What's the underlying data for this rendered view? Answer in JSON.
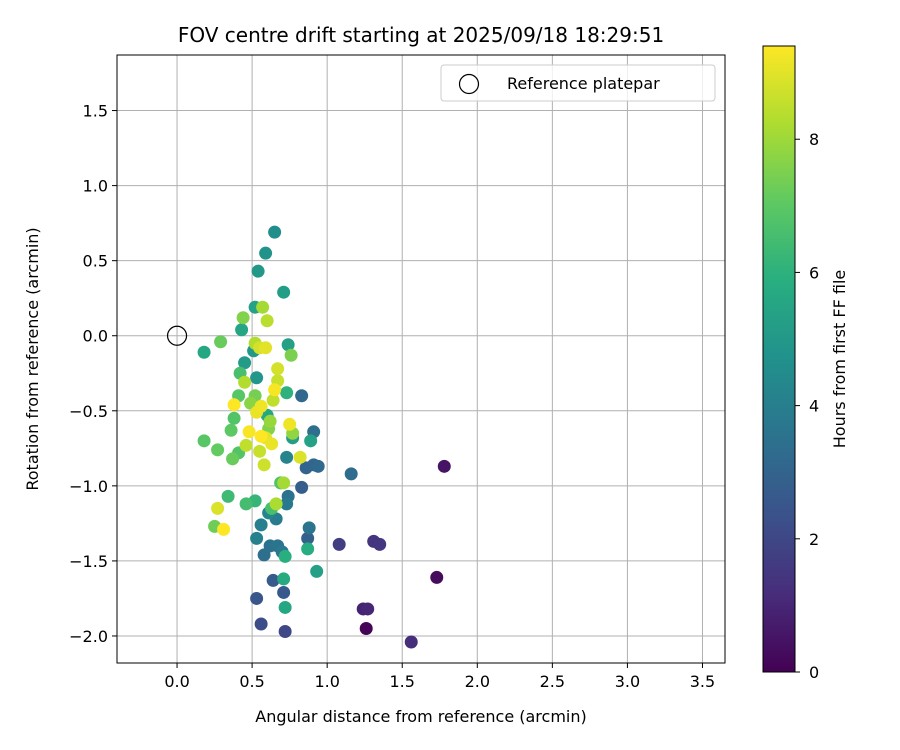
{
  "chart_data": {
    "type": "scatter",
    "title": "FOV centre drift starting at 2025/09/18 18:29:51",
    "xlabel": "Angular distance from reference (arcmin)",
    "ylabel": "Rotation from reference (arcmin)",
    "xlim": [
      -0.4,
      3.65
    ],
    "ylim": [
      -2.18,
      1.87
    ],
    "xticks": [
      "0.0",
      "0.5",
      "1.0",
      "1.5",
      "2.0",
      "2.5",
      "3.0",
      "3.5"
    ],
    "yticks": [
      "1.5",
      "1.0",
      "0.5",
      "0.0",
      "−0.5",
      "−1.0",
      "−1.5",
      "−2.0"
    ],
    "grid": true,
    "legend": {
      "placement": "top-right",
      "label": "Reference platepar"
    },
    "reference_point": {
      "x": 0.0,
      "y": 0.0
    },
    "colorbar": {
      "label": "Hours from first FF file",
      "range": [
        0,
        9.4
      ],
      "ticks": [
        "0",
        "2",
        "4",
        "6",
        "8"
      ],
      "colormap": "viridis"
    },
    "points": [
      {
        "x": 1.26,
        "y": -1.95,
        "hours": 0.1
      },
      {
        "x": 1.73,
        "y": -1.61,
        "hours": 0.3
      },
      {
        "x": 1.78,
        "y": -0.87,
        "hours": 0.5
      },
      {
        "x": 1.24,
        "y": -1.82,
        "hours": 0.9
      },
      {
        "x": 1.27,
        "y": -1.82,
        "hours": 1.0
      },
      {
        "x": 1.56,
        "y": -2.04,
        "hours": 1.2
      },
      {
        "x": 1.31,
        "y": -1.37,
        "hours": 1.4
      },
      {
        "x": 1.35,
        "y": -1.39,
        "hours": 1.5
      },
      {
        "x": 1.08,
        "y": -1.39,
        "hours": 1.7
      },
      {
        "x": 0.72,
        "y": -1.97,
        "hours": 2.0
      },
      {
        "x": 0.56,
        "y": -1.92,
        "hours": 2.2
      },
      {
        "x": 0.53,
        "y": -1.75,
        "hours": 2.5
      },
      {
        "x": 0.71,
        "y": -1.71,
        "hours": 2.6
      },
      {
        "x": 0.64,
        "y": -1.63,
        "hours": 2.7
      },
      {
        "x": 0.83,
        "y": -1.01,
        "hours": 2.8
      },
      {
        "x": 0.87,
        "y": -1.35,
        "hours": 2.9
      },
      {
        "x": 0.86,
        "y": -0.88,
        "hours": 3.0
      },
      {
        "x": 0.91,
        "y": -0.86,
        "hours": 3.1
      },
      {
        "x": 0.94,
        "y": -0.87,
        "hours": 3.2
      },
      {
        "x": 1.16,
        "y": -0.92,
        "hours": 3.3
      },
      {
        "x": 0.91,
        "y": -0.64,
        "hours": 3.4
      },
      {
        "x": 0.83,
        "y": -0.4,
        "hours": 3.2
      },
      {
        "x": 0.58,
        "y": -1.46,
        "hours": 3.4
      },
      {
        "x": 0.62,
        "y": -1.4,
        "hours": 3.5
      },
      {
        "x": 0.67,
        "y": -1.4,
        "hours": 3.6
      },
      {
        "x": 0.7,
        "y": -1.44,
        "hours": 3.7
      },
      {
        "x": 0.88,
        "y": -1.28,
        "hours": 3.6
      },
      {
        "x": 0.74,
        "y": -1.07,
        "hours": 3.5
      },
      {
        "x": 0.73,
        "y": -1.12,
        "hours": 3.8
      },
      {
        "x": 0.66,
        "y": -1.22,
        "hours": 3.9
      },
      {
        "x": 0.56,
        "y": -1.26,
        "hours": 4.0
      },
      {
        "x": 0.53,
        "y": -1.35,
        "hours": 4.1
      },
      {
        "x": 0.73,
        "y": -0.81,
        "hours": 4.2
      },
      {
        "x": 0.61,
        "y": -1.18,
        "hours": 4.3
      },
      {
        "x": 0.65,
        "y": 0.69,
        "hours": 4.6
      },
      {
        "x": 0.59,
        "y": 0.55,
        "hours": 4.8
      },
      {
        "x": 0.54,
        "y": 0.43,
        "hours": 5.0
      },
      {
        "x": 0.71,
        "y": 0.29,
        "hours": 5.2
      },
      {
        "x": 0.52,
        "y": 0.19,
        "hours": 5.4
      },
      {
        "x": 0.43,
        "y": 0.04,
        "hours": 5.5
      },
      {
        "x": 0.18,
        "y": -0.11,
        "hours": 5.6
      },
      {
        "x": 0.74,
        "y": -0.06,
        "hours": 5.3
      },
      {
        "x": 0.51,
        "y": -0.1,
        "hours": 5.0
      },
      {
        "x": 0.53,
        "y": -0.28,
        "hours": 4.9
      },
      {
        "x": 0.45,
        "y": -0.18,
        "hours": 5.1
      },
      {
        "x": 0.89,
        "y": -0.7,
        "hours": 5.4
      },
      {
        "x": 0.6,
        "y": -0.53,
        "hours": 5.6
      },
      {
        "x": 0.77,
        "y": -0.68,
        "hours": 5.2
      },
      {
        "x": 0.93,
        "y": -1.57,
        "hours": 5.3
      },
      {
        "x": 0.72,
        "y": -1.81,
        "hours": 5.6
      },
      {
        "x": 0.71,
        "y": -1.62,
        "hours": 5.7
      },
      {
        "x": 0.72,
        "y": -1.47,
        "hours": 5.9
      },
      {
        "x": 0.87,
        "y": -1.42,
        "hours": 5.8
      },
      {
        "x": 0.73,
        "y": -0.38,
        "hours": 6.0
      },
      {
        "x": 0.52,
        "y": -1.1,
        "hours": 6.2
      },
      {
        "x": 0.34,
        "y": -1.07,
        "hours": 6.4
      },
      {
        "x": 0.46,
        "y": -1.12,
        "hours": 6.5
      },
      {
        "x": 0.63,
        "y": -1.15,
        "hours": 6.6
      },
      {
        "x": 0.69,
        "y": -0.98,
        "hours": 6.7
      },
      {
        "x": 0.42,
        "y": -0.25,
        "hours": 6.6
      },
      {
        "x": 0.38,
        "y": -0.55,
        "hours": 6.8
      },
      {
        "x": 0.41,
        "y": -0.4,
        "hours": 6.9
      },
      {
        "x": 0.36,
        "y": -0.63,
        "hours": 7.0
      },
      {
        "x": 0.41,
        "y": -0.78,
        "hours": 6.8
      },
      {
        "x": 0.18,
        "y": -0.7,
        "hours": 6.9
      },
      {
        "x": 0.27,
        "y": -0.76,
        "hours": 7.1
      },
      {
        "x": 0.37,
        "y": -0.82,
        "hours": 7.2
      },
      {
        "x": 0.25,
        "y": -1.27,
        "hours": 7.3
      },
      {
        "x": 0.29,
        "y": -0.04,
        "hours": 7.2
      },
      {
        "x": 0.44,
        "y": 0.12,
        "hours": 7.6
      },
      {
        "x": 0.76,
        "y": -0.13,
        "hours": 7.5
      },
      {
        "x": 0.77,
        "y": -0.65,
        "hours": 7.8
      },
      {
        "x": 0.61,
        "y": -0.62,
        "hours": 7.6
      },
      {
        "x": 0.49,
        "y": -0.45,
        "hours": 7.7
      },
      {
        "x": 0.52,
        "y": -0.4,
        "hours": 7.4
      },
      {
        "x": 0.62,
        "y": -0.57,
        "hours": 7.9
      },
      {
        "x": 0.71,
        "y": -0.98,
        "hours": 8.1
      },
      {
        "x": 0.66,
        "y": -1.12,
        "hours": 8.2
      },
      {
        "x": 0.52,
        "y": -0.05,
        "hours": 8.3
      },
      {
        "x": 0.57,
        "y": 0.19,
        "hours": 8.1
      },
      {
        "x": 0.6,
        "y": 0.1,
        "hours": 8.4
      },
      {
        "x": 0.45,
        "y": -0.31,
        "hours": 8.3
      },
      {
        "x": 0.46,
        "y": -0.73,
        "hours": 8.5
      },
      {
        "x": 0.55,
        "y": -0.77,
        "hours": 8.6
      },
      {
        "x": 0.58,
        "y": -0.86,
        "hours": 8.7
      },
      {
        "x": 0.64,
        "y": -0.43,
        "hours": 8.5
      },
      {
        "x": 0.67,
        "y": -0.3,
        "hours": 8.6
      },
      {
        "x": 0.67,
        "y": -0.22,
        "hours": 8.8
      },
      {
        "x": 0.82,
        "y": -0.81,
        "hours": 8.9
      },
      {
        "x": 0.27,
        "y": -1.15,
        "hours": 8.9
      },
      {
        "x": 0.55,
        "y": -0.08,
        "hours": 8.8
      },
      {
        "x": 0.59,
        "y": -0.08,
        "hours": 9.0
      },
      {
        "x": 0.53,
        "y": -0.51,
        "hours": 9.1
      },
      {
        "x": 0.56,
        "y": -0.47,
        "hours": 9.2
      },
      {
        "x": 0.59,
        "y": -0.68,
        "hours": 9.0
      },
      {
        "x": 0.63,
        "y": -0.72,
        "hours": 9.1
      },
      {
        "x": 0.65,
        "y": -0.36,
        "hours": 9.3
      },
      {
        "x": 0.38,
        "y": -0.46,
        "hours": 9.4
      },
      {
        "x": 0.48,
        "y": -0.64,
        "hours": 9.3
      },
      {
        "x": 0.56,
        "y": -0.67,
        "hours": 9.4
      },
      {
        "x": 0.75,
        "y": -0.59,
        "hours": 9.2
      },
      {
        "x": 0.31,
        "y": -1.29,
        "hours": 9.4
      }
    ]
  }
}
